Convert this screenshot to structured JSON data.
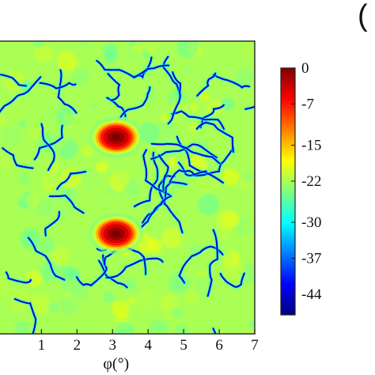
{
  "panel_label": "(",
  "chart_data": {
    "type": "heatmap",
    "title": "",
    "xlabel": "φ(°)",
    "ylabel": "",
    "xlim": [
      -0.3,
      7
    ],
    "ylim": [
      -0.3,
      7
    ],
    "x_ticks": [
      {
        "value": 1,
        "label": "1"
      },
      {
        "value": 2,
        "label": "2"
      },
      {
        "value": 3,
        "label": "3"
      },
      {
        "value": 4,
        "label": "4"
      },
      {
        "value": 5,
        "label": "5"
      },
      {
        "value": 6,
        "label": "6"
      },
      {
        "value": 7,
        "label": "7"
      }
    ],
    "colorbar": {
      "min": -48,
      "max": 0,
      "ticks": [
        {
          "value": 0,
          "label": "0"
        },
        {
          "value": -7,
          "label": "-7"
        },
        {
          "value": -15,
          "label": "-15"
        },
        {
          "value": -22,
          "label": "-22"
        },
        {
          "value": -30,
          "label": "-30"
        },
        {
          "value": -37,
          "label": "-37"
        },
        {
          "value": -44,
          "label": "-44"
        }
      ]
    },
    "colormap": [
      "#00007f",
      "#0000ff",
      "#007fff",
      "#00ffff",
      "#7fff7f",
      "#ffff00",
      "#ff7f00",
      "#ff0000",
      "#7f0000"
    ],
    "peaks": [
      {
        "x": 3.1,
        "y": 4.6,
        "value": 0
      },
      {
        "x": 3.1,
        "y": 2.2,
        "value": 0
      }
    ],
    "background_level": -22
  }
}
